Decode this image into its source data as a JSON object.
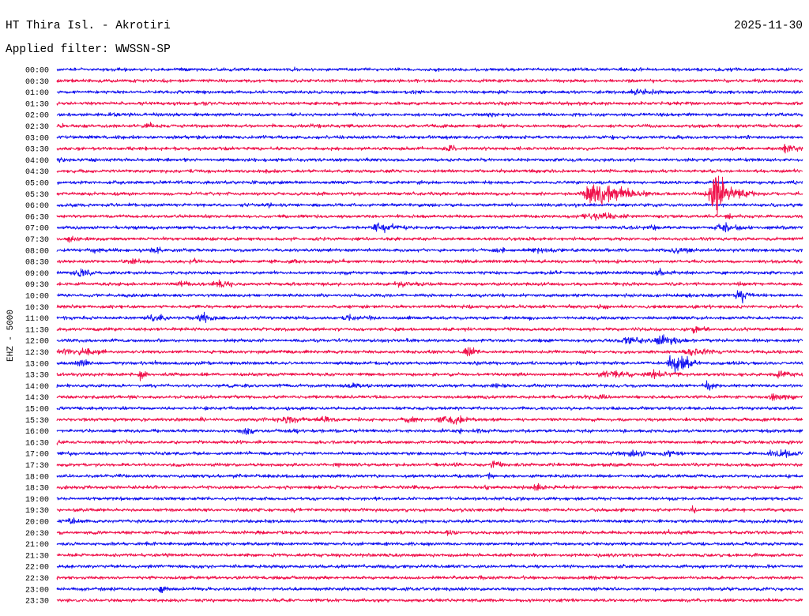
{
  "chart_data": {
    "type": "line",
    "title": "HT Thira Isl. - Akrotiri",
    "date": "2025-11-30",
    "subtitle": "Applied filter: WWSSN-SP",
    "ylabel": "EHZ - 5000",
    "xlabel": "",
    "colors": {
      "hour_rows": "#1414f0",
      "half_hour_rows": "#f0124c"
    },
    "rows": [
      {
        "label": "00:00",
        "events": []
      },
      {
        "label": "00:30",
        "events": []
      },
      {
        "label": "01:00",
        "events": [
          {
            "minute": 23.4,
            "amp": 2.5,
            "dur": 1.0
          }
        ]
      },
      {
        "label": "01:30",
        "events": []
      },
      {
        "label": "02:00",
        "events": []
      },
      {
        "label": "02:30",
        "events": [
          {
            "minute": 3.7,
            "amp": 2.2,
            "dur": 0.7
          }
        ]
      },
      {
        "label": "03:00",
        "events": []
      },
      {
        "label": "03:30",
        "events": [
          {
            "minute": 15.8,
            "amp": 2.8,
            "dur": 0.3
          },
          {
            "minute": 29.4,
            "amp": 3,
            "dur": 0.6
          }
        ]
      },
      {
        "label": "04:00",
        "events": [
          {
            "minute": 0.2,
            "amp": 2.2,
            "dur": 0.4
          }
        ]
      },
      {
        "label": "04:30",
        "events": []
      },
      {
        "label": "05:00",
        "events": []
      },
      {
        "label": "05:30",
        "events": [
          {
            "minute": 21.8,
            "amp": 8,
            "dur": 1.2
          },
          {
            "minute": 26.5,
            "amp": 25,
            "dur": 0.3
          },
          {
            "minute": 26.6,
            "amp": 7,
            "dur": 1.0
          }
        ]
      },
      {
        "label": "06:00",
        "events": []
      },
      {
        "label": "06:30",
        "events": [
          {
            "minute": 21.8,
            "amp": 3,
            "dur": 1.5
          }
        ]
      },
      {
        "label": "07:00",
        "events": [
          {
            "minute": 13.1,
            "amp": 3,
            "dur": 1.2
          },
          {
            "minute": 23.9,
            "amp": 2.2,
            "dur": 0.5
          },
          {
            "minute": 26.8,
            "amp": 3,
            "dur": 1.0
          }
        ]
      },
      {
        "label": "07:30",
        "events": [
          {
            "minute": 0.5,
            "amp": 2.8,
            "dur": 0.4
          }
        ]
      },
      {
        "label": "08:00",
        "events": [
          {
            "minute": 1.5,
            "amp": 2.2,
            "dur": 0.8
          },
          {
            "minute": 3.9,
            "amp": 2.6,
            "dur": 0.5
          },
          {
            "minute": 17.7,
            "amp": 2.2,
            "dur": 0.6
          },
          {
            "minute": 19.3,
            "amp": 2.6,
            "dur": 1.2
          },
          {
            "minute": 25.0,
            "amp": 2.6,
            "dur": 0.8
          }
        ]
      },
      {
        "label": "08:30",
        "events": [
          {
            "minute": 3.1,
            "amp": 2.2,
            "dur": 0.8
          },
          {
            "minute": 5.5,
            "amp": 2.2,
            "dur": 0.6
          }
        ]
      },
      {
        "label": "09:00",
        "events": [
          {
            "minute": 0.9,
            "amp": 3.5,
            "dur": 0.6
          },
          {
            "minute": 24.2,
            "amp": 3.5,
            "dur": 0.5
          }
        ]
      },
      {
        "label": "09:30",
        "events": [
          {
            "minute": 4.9,
            "amp": 2.6,
            "dur": 0.7
          },
          {
            "minute": 6.6,
            "amp": 2.6,
            "dur": 0.8
          },
          {
            "minute": 13.9,
            "amp": 2.6,
            "dur": 0.7
          }
        ]
      },
      {
        "label": "10:00",
        "events": [
          {
            "minute": 27.5,
            "amp": 5,
            "dur": 0.4
          }
        ]
      },
      {
        "label": "10:30",
        "events": [
          {
            "minute": 21.9,
            "amp": 2.2,
            "dur": 0.5
          }
        ]
      },
      {
        "label": "11:00",
        "events": [
          {
            "minute": 3.9,
            "amp": 3,
            "dur": 0.8
          },
          {
            "minute": 5.9,
            "amp": 3.5,
            "dur": 0.6
          },
          {
            "minute": 11.7,
            "amp": 2.2,
            "dur": 0.8
          },
          {
            "minute": 12.5,
            "amp": 2.2,
            "dur": 0.4
          }
        ]
      },
      {
        "label": "11:30",
        "events": [
          {
            "minute": 25.7,
            "amp": 3,
            "dur": 0.5
          }
        ]
      },
      {
        "label": "12:00",
        "events": [
          {
            "minute": 23.0,
            "amp": 3,
            "dur": 1.0
          },
          {
            "minute": 24.4,
            "amp": 4,
            "dur": 0.8
          }
        ]
      },
      {
        "label": "12:30",
        "events": [
          {
            "minute": 0.3,
            "amp": 2.6,
            "dur": 0.8
          },
          {
            "minute": 1.2,
            "amp": 3,
            "dur": 0.8
          },
          {
            "minute": 16.5,
            "amp": 5,
            "dur": 0.4
          },
          {
            "minute": 25.7,
            "amp": 2.6,
            "dur": 1.2
          }
        ]
      },
      {
        "label": "13:00",
        "events": [
          {
            "minute": 1.0,
            "amp": 3.5,
            "dur": 0.5
          },
          {
            "minute": 24.9,
            "amp": 7,
            "dur": 0.6
          }
        ]
      },
      {
        "label": "13:30",
        "events": [
          {
            "minute": 3.4,
            "amp": 4,
            "dur": 0.25
          },
          {
            "minute": 22.2,
            "amp": 3,
            "dur": 1.2
          },
          {
            "minute": 24.1,
            "amp": 3,
            "dur": 1.2
          },
          {
            "minute": 29.2,
            "amp": 3,
            "dur": 0.8
          }
        ]
      },
      {
        "label": "14:00",
        "events": [
          {
            "minute": 11.9,
            "amp": 2.6,
            "dur": 0.8
          },
          {
            "minute": 26.2,
            "amp": 3,
            "dur": 0.5
          }
        ]
      },
      {
        "label": "14:30",
        "events": [
          {
            "minute": 21.9,
            "amp": 2.2,
            "dur": 0.5
          },
          {
            "minute": 28.9,
            "amp": 2.6,
            "dur": 1.0
          }
        ]
      },
      {
        "label": "15:00",
        "events": []
      },
      {
        "label": "15:30",
        "events": [
          {
            "minute": 9.2,
            "amp": 2.6,
            "dur": 1.2
          },
          {
            "minute": 10.7,
            "amp": 2.6,
            "dur": 0.8
          },
          {
            "minute": 14.2,
            "amp": 2.2,
            "dur": 0.8
          },
          {
            "minute": 15.8,
            "amp": 3,
            "dur": 1.2
          }
        ]
      },
      {
        "label": "16:00",
        "events": [
          {
            "minute": 7.6,
            "amp": 3,
            "dur": 0.6
          }
        ]
      },
      {
        "label": "16:30",
        "events": []
      },
      {
        "label": "17:00",
        "events": [
          {
            "minute": 23.1,
            "amp": 3,
            "dur": 1.0
          },
          {
            "minute": 24.6,
            "amp": 2.6,
            "dur": 0.8
          },
          {
            "minute": 29.1,
            "amp": 3,
            "dur": 1.2
          }
        ]
      },
      {
        "label": "17:30",
        "events": [
          {
            "minute": 17.6,
            "amp": 3.5,
            "dur": 0.4
          }
        ]
      },
      {
        "label": "18:00",
        "events": [
          {
            "minute": 17.4,
            "amp": 2.6,
            "dur": 0.3
          }
        ]
      },
      {
        "label": "18:30",
        "events": [
          {
            "minute": 17.3,
            "amp": 1.8,
            "dur": 0.3
          },
          {
            "minute": 19.3,
            "amp": 3,
            "dur": 0.4
          }
        ]
      },
      {
        "label": "19:00",
        "events": []
      },
      {
        "label": "19:30",
        "events": [
          {
            "minute": 9.5,
            "amp": 2.2,
            "dur": 0.25
          },
          {
            "minute": 25.6,
            "amp": 2.2,
            "dur": 0.3
          }
        ]
      },
      {
        "label": "20:00",
        "events": [
          {
            "minute": 0.6,
            "amp": 3,
            "dur": 0.4
          }
        ]
      },
      {
        "label": "20:30",
        "events": [
          {
            "minute": 15.8,
            "amp": 2.6,
            "dur": 0.5
          }
        ]
      },
      {
        "label": "21:00",
        "events": []
      },
      {
        "label": "21:30",
        "events": []
      },
      {
        "label": "22:00",
        "events": []
      },
      {
        "label": "22:30",
        "events": []
      },
      {
        "label": "23:00",
        "events": [
          {
            "minute": 4.2,
            "amp": 3,
            "dur": 0.3
          }
        ]
      },
      {
        "label": "23:30",
        "events": []
      }
    ]
  }
}
